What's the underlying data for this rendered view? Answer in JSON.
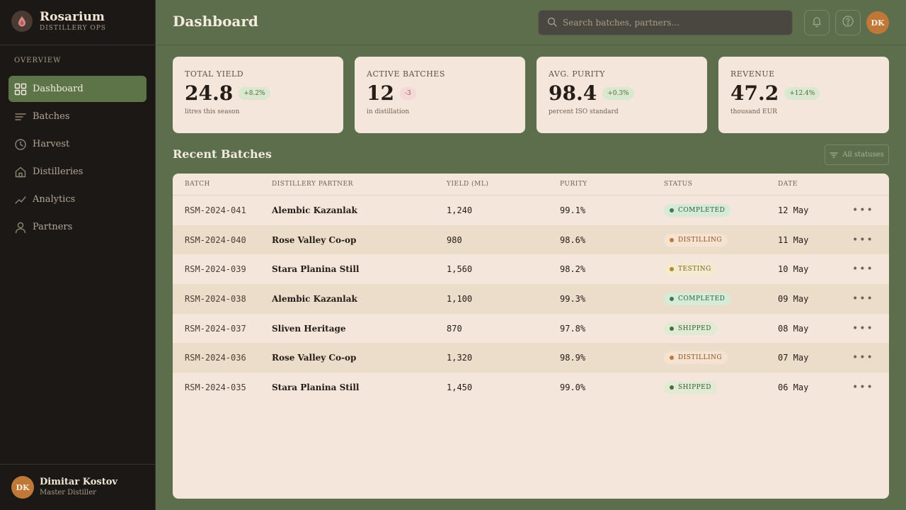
{
  "brand": {
    "name": "Rosarium",
    "subtitle": "Distillery Ops"
  },
  "sidebar": {
    "section_label": "Overview",
    "items": [
      {
        "label": "Dashboard",
        "icon": "grid-icon",
        "active": true
      },
      {
        "label": "Batches",
        "icon": "lines-icon",
        "active": false
      },
      {
        "label": "Harvest",
        "icon": "clock-icon",
        "active": false
      },
      {
        "label": "Distilleries",
        "icon": "house-icon",
        "active": false
      },
      {
        "label": "Analytics",
        "icon": "trend-icon",
        "active": false
      },
      {
        "label": "Partners",
        "icon": "person-icon",
        "active": false
      }
    ],
    "user": {
      "initials": "DK",
      "name": "Dimitar Kostov",
      "role": "Master Distiller"
    }
  },
  "header": {
    "title": "Dashboard",
    "search_placeholder": "Search batches, partners...",
    "avatar_initials": "DK"
  },
  "stats": [
    {
      "label": "Total Yield",
      "value": "24.8",
      "badge": "+8.2%",
      "badge_type": "positive",
      "sub": "litres this season"
    },
    {
      "label": "Active Batches",
      "value": "12",
      "badge": "-3",
      "badge_type": "negative",
      "sub": "in distillation"
    },
    {
      "label": "Avg. Purity",
      "value": "98.4",
      "badge": "+0.3%",
      "badge_type": "positive",
      "sub": "percent ISO standard"
    },
    {
      "label": "Revenue",
      "value": "47.2",
      "badge": "+12.4%",
      "badge_type": "positive",
      "sub": "thousand EUR"
    }
  ],
  "recent": {
    "title": "Recent Batches",
    "filter_label": "All statuses",
    "columns": [
      "Batch",
      "Distillery Partner",
      "Yield (mL)",
      "Purity",
      "Status",
      "Date"
    ],
    "rows": [
      {
        "batch": "RSM-2024-041",
        "partner": "Alembic Kazanlak",
        "yield": "1,240",
        "purity": "99.1%",
        "status": "Completed",
        "date": "12 May"
      },
      {
        "batch": "RSM-2024-040",
        "partner": "Rose Valley Co-op",
        "yield": "980",
        "purity": "98.6%",
        "status": "Distilling",
        "date": "11 May"
      },
      {
        "batch": "RSM-2024-039",
        "partner": "Stara Planina Still",
        "yield": "1,560",
        "purity": "98.2%",
        "status": "Testing",
        "date": "10 May"
      },
      {
        "batch": "RSM-2024-038",
        "partner": "Alembic Kazanlak",
        "yield": "1,100",
        "purity": "99.3%",
        "status": "Completed",
        "date": "09 May"
      },
      {
        "batch": "RSM-2024-037",
        "partner": "Sliven Heritage",
        "yield": "870",
        "purity": "97.8%",
        "status": "Shipped",
        "date": "08 May"
      },
      {
        "batch": "RSM-2024-036",
        "partner": "Rose Valley Co-op",
        "yield": "1,320",
        "purity": "98.9%",
        "status": "Distilling",
        "date": "07 May"
      },
      {
        "batch": "RSM-2024-035",
        "partner": "Stara Planina Still",
        "yield": "1,450",
        "purity": "99.0%",
        "status": "Shipped",
        "date": "06 May"
      }
    ]
  },
  "colors": {
    "accent": "#5d7449",
    "avatar": "#c07838",
    "status_completed": "#3d7a4e",
    "status_distilling": "#c07838",
    "status_testing": "#b58a2a",
    "status_shipped": "#4c6b3a"
  }
}
